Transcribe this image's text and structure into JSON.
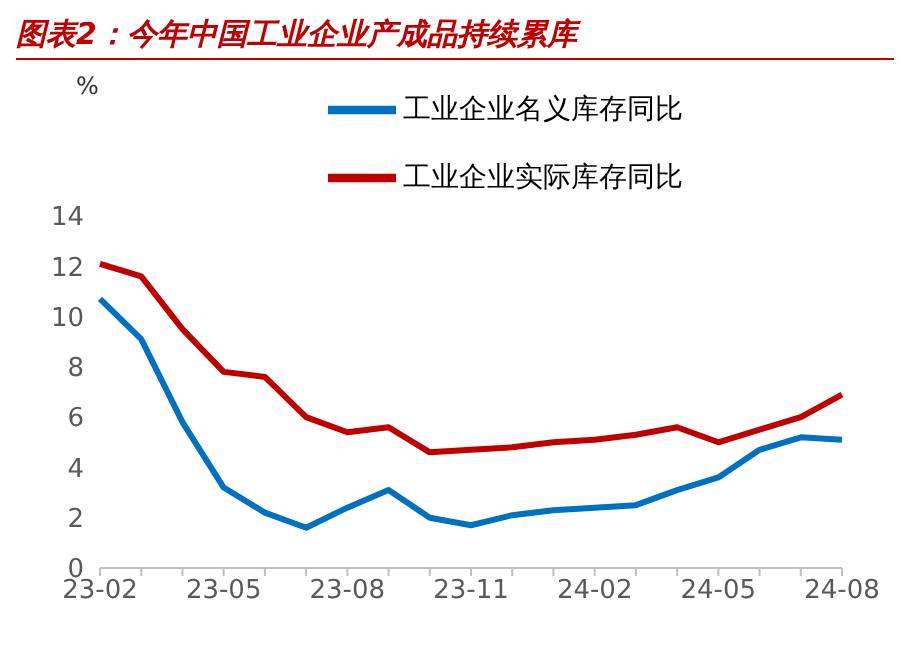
{
  "chart_data": {
    "type": "line",
    "title": "图表2：今年中国工业企业产成品持续累库",
    "ylabel": "%",
    "categories": [
      "23-02",
      null,
      null,
      "23-05",
      null,
      null,
      "23-08",
      null,
      null,
      "23-11",
      null,
      null,
      "24-02",
      null,
      null,
      "24-05",
      null,
      null,
      "24-08"
    ],
    "series": [
      {
        "name": "工业企业名义库存同比",
        "color": "#0070c0",
        "values": [
          10.7,
          9.1,
          5.8,
          3.2,
          2.2,
          1.6,
          2.4,
          3.1,
          2.0,
          1.7,
          2.1,
          2.3,
          2.4,
          2.5,
          3.1,
          3.6,
          4.7,
          5.2,
          5.1
        ]
      },
      {
        "name": "工业企业实际库存同比",
        "color": "#c00000",
        "values": [
          12.1,
          11.6,
          9.5,
          7.8,
          7.6,
          6.0,
          5.4,
          5.6,
          4.6,
          4.7,
          4.8,
          5.0,
          5.1,
          5.3,
          5.6,
          5.0,
          5.5,
          6.0,
          6.9
        ]
      }
    ],
    "ylim": [
      0,
      14
    ],
    "yticks": [
      0,
      2,
      4,
      6,
      8,
      10,
      12,
      14
    ],
    "grid": false,
    "legend": "top",
    "marker": "none",
    "line_style": "solid"
  }
}
